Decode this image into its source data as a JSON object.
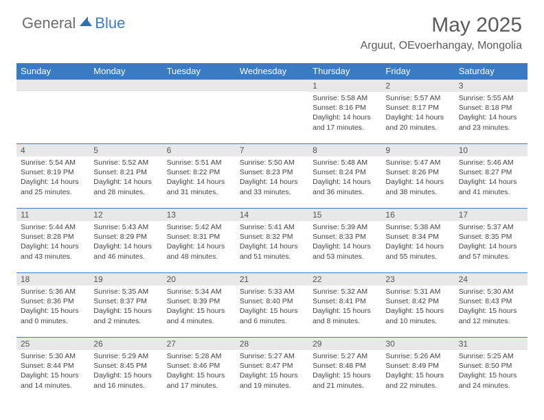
{
  "brand": {
    "general": "General",
    "blue": "Blue"
  },
  "title": "May 2025",
  "location": "Arguut, OEvoerhangay, Mongolia",
  "colors": {
    "accent": "#3a7cc4",
    "header_text": "#ffffff",
    "daynum_bg": "#e8e8e8",
    "body_text": "#444444",
    "page_title": "#5a5a5a"
  },
  "day_headers": [
    "Sunday",
    "Monday",
    "Tuesday",
    "Wednesday",
    "Thursday",
    "Friday",
    "Saturday"
  ],
  "weeks": [
    [
      {
        "n": "",
        "sunrise": "",
        "sunset": "",
        "daylight": ""
      },
      {
        "n": "",
        "sunrise": "",
        "sunset": "",
        "daylight": ""
      },
      {
        "n": "",
        "sunrise": "",
        "sunset": "",
        "daylight": ""
      },
      {
        "n": "",
        "sunrise": "",
        "sunset": "",
        "daylight": ""
      },
      {
        "n": "1",
        "sunrise": "Sunrise: 5:58 AM",
        "sunset": "Sunset: 8:16 PM",
        "daylight": "Daylight: 14 hours and 17 minutes."
      },
      {
        "n": "2",
        "sunrise": "Sunrise: 5:57 AM",
        "sunset": "Sunset: 8:17 PM",
        "daylight": "Daylight: 14 hours and 20 minutes."
      },
      {
        "n": "3",
        "sunrise": "Sunrise: 5:55 AM",
        "sunset": "Sunset: 8:18 PM",
        "daylight": "Daylight: 14 hours and 23 minutes."
      }
    ],
    [
      {
        "n": "4",
        "sunrise": "Sunrise: 5:54 AM",
        "sunset": "Sunset: 8:19 PM",
        "daylight": "Daylight: 14 hours and 25 minutes."
      },
      {
        "n": "5",
        "sunrise": "Sunrise: 5:52 AM",
        "sunset": "Sunset: 8:21 PM",
        "daylight": "Daylight: 14 hours and 28 minutes."
      },
      {
        "n": "6",
        "sunrise": "Sunrise: 5:51 AM",
        "sunset": "Sunset: 8:22 PM",
        "daylight": "Daylight: 14 hours and 31 minutes."
      },
      {
        "n": "7",
        "sunrise": "Sunrise: 5:50 AM",
        "sunset": "Sunset: 8:23 PM",
        "daylight": "Daylight: 14 hours and 33 minutes."
      },
      {
        "n": "8",
        "sunrise": "Sunrise: 5:48 AM",
        "sunset": "Sunset: 8:24 PM",
        "daylight": "Daylight: 14 hours and 36 minutes."
      },
      {
        "n": "9",
        "sunrise": "Sunrise: 5:47 AM",
        "sunset": "Sunset: 8:26 PM",
        "daylight": "Daylight: 14 hours and 38 minutes."
      },
      {
        "n": "10",
        "sunrise": "Sunrise: 5:46 AM",
        "sunset": "Sunset: 8:27 PM",
        "daylight": "Daylight: 14 hours and 41 minutes."
      }
    ],
    [
      {
        "n": "11",
        "sunrise": "Sunrise: 5:44 AM",
        "sunset": "Sunset: 8:28 PM",
        "daylight": "Daylight: 14 hours and 43 minutes."
      },
      {
        "n": "12",
        "sunrise": "Sunrise: 5:43 AM",
        "sunset": "Sunset: 8:29 PM",
        "daylight": "Daylight: 14 hours and 46 minutes."
      },
      {
        "n": "13",
        "sunrise": "Sunrise: 5:42 AM",
        "sunset": "Sunset: 8:31 PM",
        "daylight": "Daylight: 14 hours and 48 minutes."
      },
      {
        "n": "14",
        "sunrise": "Sunrise: 5:41 AM",
        "sunset": "Sunset: 8:32 PM",
        "daylight": "Daylight: 14 hours and 51 minutes."
      },
      {
        "n": "15",
        "sunrise": "Sunrise: 5:39 AM",
        "sunset": "Sunset: 8:33 PM",
        "daylight": "Daylight: 14 hours and 53 minutes."
      },
      {
        "n": "16",
        "sunrise": "Sunrise: 5:38 AM",
        "sunset": "Sunset: 8:34 PM",
        "daylight": "Daylight: 14 hours and 55 minutes."
      },
      {
        "n": "17",
        "sunrise": "Sunrise: 5:37 AM",
        "sunset": "Sunset: 8:35 PM",
        "daylight": "Daylight: 14 hours and 57 minutes."
      }
    ],
    [
      {
        "n": "18",
        "sunrise": "Sunrise: 5:36 AM",
        "sunset": "Sunset: 8:36 PM",
        "daylight": "Daylight: 15 hours and 0 minutes."
      },
      {
        "n": "19",
        "sunrise": "Sunrise: 5:35 AM",
        "sunset": "Sunset: 8:37 PM",
        "daylight": "Daylight: 15 hours and 2 minutes."
      },
      {
        "n": "20",
        "sunrise": "Sunrise: 5:34 AM",
        "sunset": "Sunset: 8:39 PM",
        "daylight": "Daylight: 15 hours and 4 minutes."
      },
      {
        "n": "21",
        "sunrise": "Sunrise: 5:33 AM",
        "sunset": "Sunset: 8:40 PM",
        "daylight": "Daylight: 15 hours and 6 minutes."
      },
      {
        "n": "22",
        "sunrise": "Sunrise: 5:32 AM",
        "sunset": "Sunset: 8:41 PM",
        "daylight": "Daylight: 15 hours and 8 minutes."
      },
      {
        "n": "23",
        "sunrise": "Sunrise: 5:31 AM",
        "sunset": "Sunset: 8:42 PM",
        "daylight": "Daylight: 15 hours and 10 minutes."
      },
      {
        "n": "24",
        "sunrise": "Sunrise: 5:30 AM",
        "sunset": "Sunset: 8:43 PM",
        "daylight": "Daylight: 15 hours and 12 minutes."
      }
    ],
    [
      {
        "n": "25",
        "sunrise": "Sunrise: 5:30 AM",
        "sunset": "Sunset: 8:44 PM",
        "daylight": "Daylight: 15 hours and 14 minutes."
      },
      {
        "n": "26",
        "sunrise": "Sunrise: 5:29 AM",
        "sunset": "Sunset: 8:45 PM",
        "daylight": "Daylight: 15 hours and 16 minutes."
      },
      {
        "n": "27",
        "sunrise": "Sunrise: 5:28 AM",
        "sunset": "Sunset: 8:46 PM",
        "daylight": "Daylight: 15 hours and 17 minutes."
      },
      {
        "n": "28",
        "sunrise": "Sunrise: 5:27 AM",
        "sunset": "Sunset: 8:47 PM",
        "daylight": "Daylight: 15 hours and 19 minutes."
      },
      {
        "n": "29",
        "sunrise": "Sunrise: 5:27 AM",
        "sunset": "Sunset: 8:48 PM",
        "daylight": "Daylight: 15 hours and 21 minutes."
      },
      {
        "n": "30",
        "sunrise": "Sunrise: 5:26 AM",
        "sunset": "Sunset: 8:49 PM",
        "daylight": "Daylight: 15 hours and 22 minutes."
      },
      {
        "n": "31",
        "sunrise": "Sunrise: 5:25 AM",
        "sunset": "Sunset: 8:50 PM",
        "daylight": "Daylight: 15 hours and 24 minutes."
      }
    ]
  ]
}
